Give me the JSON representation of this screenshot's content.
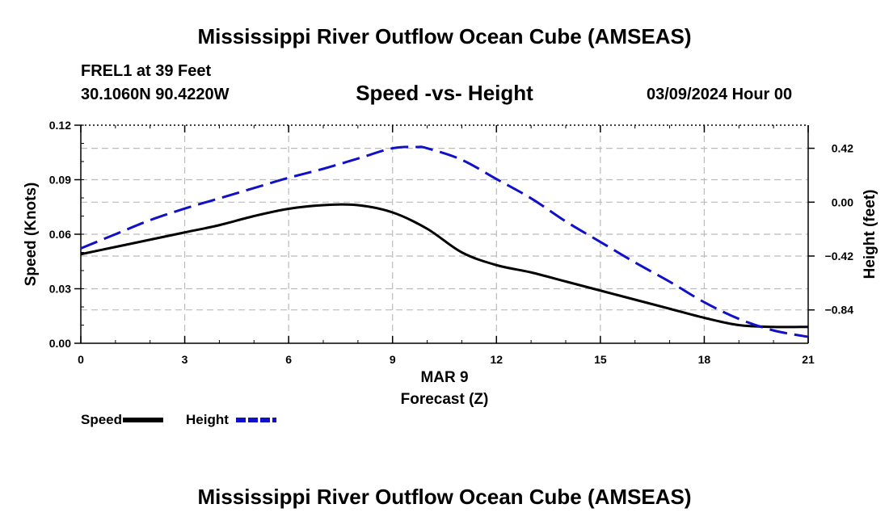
{
  "header": {
    "title": "Mississippi River Outflow Ocean Cube (AMSEAS)",
    "station": "FREL1 at 39 Feet",
    "coordinates": "30.1060N  90.4220W",
    "subtitle": "Speed -vs- Height",
    "date": "03/09/2024 Hour 00"
  },
  "footer": {
    "title": "Mississippi River Outflow Ocean Cube (AMSEAS)"
  },
  "chart_data": {
    "type": "line",
    "title": "Speed -vs- Height",
    "xlabel": "Forecast (Z)",
    "x_date_label": "MAR 9",
    "xlim": [
      0,
      21
    ],
    "x_ticks": [
      0,
      3,
      6,
      9,
      12,
      15,
      18,
      21
    ],
    "x_tick_labels": [
      "0",
      "3",
      "6",
      "9",
      "12",
      "15",
      "18",
      "21"
    ],
    "y_left": {
      "label": "Speed (Knots)",
      "lim": [
        0,
        0.12
      ],
      "ticks": [
        0,
        0.03,
        0.06,
        0.09,
        0.12
      ],
      "tick_labels": [
        "0.00",
        "0.03",
        "0.06",
        "0.09",
        "0.12"
      ]
    },
    "y_right": {
      "label": "Height (feet)",
      "lim": [
        -1.1,
        0.6
      ],
      "ticks": [
        -0.84,
        -0.42,
        0.0,
        0.42
      ],
      "tick_labels": [
        "−0.84",
        "−0.42",
        "0.00",
        "0.42"
      ]
    },
    "grid": true,
    "series": [
      {
        "name": "Speed",
        "axis": "left",
        "color": "#000000",
        "style": "solid",
        "x": [
          0,
          1,
          2,
          3,
          4,
          5,
          6,
          7,
          8,
          9,
          10,
          11,
          12,
          13,
          14,
          15,
          16,
          17,
          18,
          19,
          20,
          21
        ],
        "values": [
          0.049,
          0.053,
          0.057,
          0.061,
          0.065,
          0.07,
          0.074,
          0.076,
          0.076,
          0.072,
          0.063,
          0.05,
          0.043,
          0.039,
          0.034,
          0.029,
          0.024,
          0.019,
          0.014,
          0.01,
          0.009,
          0.009
        ]
      },
      {
        "name": "Height",
        "axis": "right",
        "color": "#1010c8",
        "style": "dashed",
        "x": [
          0,
          1,
          2,
          3,
          4,
          5,
          6,
          7,
          8,
          9,
          9.7,
          10,
          11,
          12,
          13,
          14,
          15,
          16,
          17,
          18,
          19,
          20,
          21
        ],
        "values": [
          -0.36,
          -0.25,
          -0.14,
          -0.05,
          0.03,
          0.11,
          0.19,
          0.26,
          0.34,
          0.42,
          0.43,
          0.42,
          0.33,
          0.18,
          0.03,
          -0.15,
          -0.31,
          -0.47,
          -0.62,
          -0.78,
          -0.91,
          -1.0,
          -1.05
        ]
      }
    ],
    "legend": [
      {
        "label": "Speed",
        "color": "#000000",
        "style": "solid"
      },
      {
        "label": "Height",
        "color": "#1010c8",
        "style": "dashed"
      }
    ]
  }
}
